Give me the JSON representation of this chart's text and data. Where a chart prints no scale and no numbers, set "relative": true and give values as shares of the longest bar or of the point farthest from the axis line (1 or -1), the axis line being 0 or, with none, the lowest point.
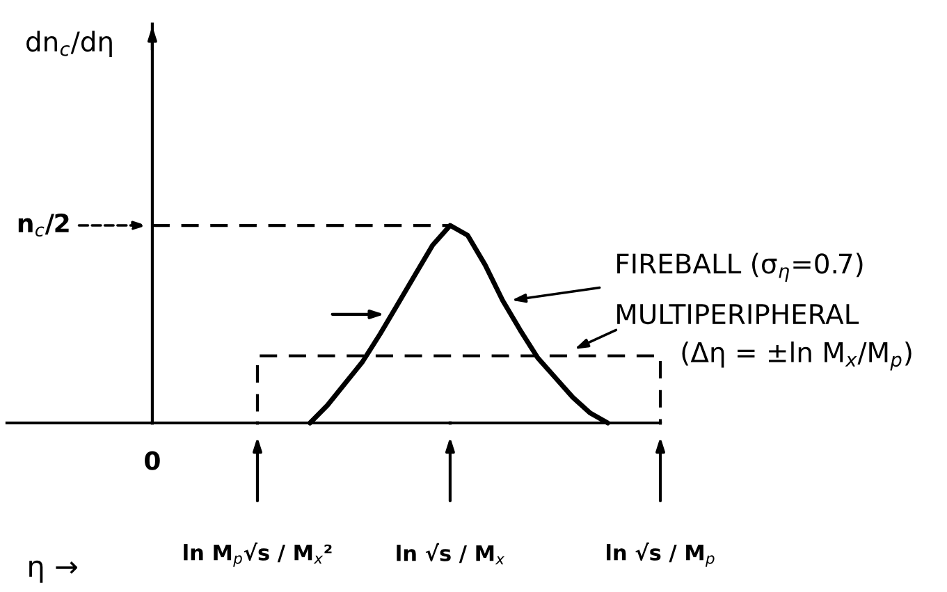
{
  "chart_data": {
    "type": "line",
    "relative": true,
    "xlabel": "η →",
    "categories": [
      null,
      null,
      null,
      null,
      null,
      null,
      null,
      null,
      "0",
      null,
      null,
      null,
      null,
      null,
      "ln M$_{p}$√s / M$_{x}$²",
      null,
      null,
      null,
      null,
      null,
      null,
      null,
      null,
      null,
      null,
      "ln √s / M$_{x}$",
      null,
      null,
      null,
      null,
      null,
      null,
      null,
      null,
      null,
      null,
      null,
      "ln √s / M$_{p}$"
    ],
    "series": [
      {
        "color": "#000000",
        "line_style": "solid",
        "values": [
          null,
          null,
          null,
          null,
          null,
          null,
          null,
          null,
          null,
          null,
          null,
          null,
          null,
          null,
          null,
          null,
          null,
          0.0,
          0.09,
          0.2,
          0.31,
          0.45,
          0.6,
          0.75,
          0.9,
          1.0,
          0.95,
          0.8,
          0.62,
          0.47,
          0.33,
          0.23,
          0.13,
          0.05,
          0.0,
          null,
          null,
          null
        ]
      },
      {
        "type": "step",
        "color": "#000000",
        "line_style": "dashed",
        "values": [
          null,
          null,
          null,
          null,
          null,
          null,
          null,
          null,
          null,
          null,
          null,
          null,
          null,
          0.0,
          0.34,
          0.34,
          0.34,
          0.34,
          0.34,
          0.34,
          0.34,
          0.34,
          0.34,
          0.34,
          0.34,
          0.34,
          0.34,
          0.34,
          0.34,
          0.34,
          0.34,
          0.34,
          0.34,
          0.34,
          0.34,
          0.34,
          0.34,
          0.0
        ]
      }
    ],
    "ref_lines": [
      {
        "axis": "y",
        "value": 1.0,
        "label": "n$_{c}$/2",
        "line_style": "dashed",
        "color": "#000000"
      }
    ],
    "annotations": [
      "dn$_{c}$/dη",
      "FIREBALL (σ$_{η}$=0.7)",
      "MULTIPERIPHERAL",
      "(Δη = ±ln M$_{x}$/M$_{p}$)"
    ]
  }
}
